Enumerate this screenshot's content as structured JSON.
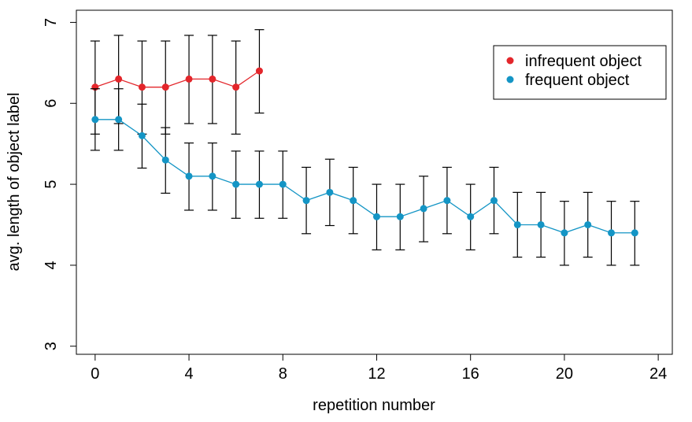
{
  "chart_data": {
    "type": "line",
    "title": "",
    "xlabel": "repetition number",
    "ylabel": "avg. length of object label",
    "xlim": [
      -0.8,
      24.6
    ],
    "ylim": [
      2.9,
      7.15
    ],
    "xticks": [
      0,
      4,
      8,
      12,
      16,
      20,
      24
    ],
    "yticks": [
      3,
      4,
      5,
      6,
      7
    ],
    "grid": false,
    "legend_position": "top-right",
    "series": [
      {
        "name": "infrequent object",
        "color": "#e3262b",
        "x": [
          0,
          1,
          2,
          3,
          4,
          5,
          6,
          7
        ],
        "y": [
          6.2,
          6.3,
          6.2,
          6.2,
          6.3,
          6.3,
          6.2,
          6.4
        ],
        "err_low": [
          5.62,
          5.75,
          5.62,
          5.62,
          5.75,
          5.75,
          5.62,
          5.88
        ],
        "err_high": [
          6.77,
          6.84,
          6.77,
          6.77,
          6.84,
          6.84,
          6.77,
          6.91
        ]
      },
      {
        "name": "frequent object",
        "color": "#1495c5",
        "x": [
          0,
          1,
          2,
          3,
          4,
          5,
          6,
          7,
          8,
          9,
          10,
          11,
          12,
          13,
          14,
          15,
          16,
          17,
          18,
          19,
          20,
          21,
          22,
          23
        ],
        "y": [
          5.8,
          5.8,
          5.6,
          5.3,
          5.1,
          5.1,
          5.0,
          5.0,
          5.0,
          4.8,
          4.9,
          4.8,
          4.6,
          4.6,
          4.7,
          4.8,
          4.6,
          4.8,
          4.5,
          4.5,
          4.4,
          4.5,
          4.4,
          4.4
        ],
        "err_low": [
          5.42,
          5.42,
          5.2,
          4.89,
          4.68,
          4.68,
          4.58,
          4.58,
          4.58,
          4.39,
          4.49,
          4.39,
          4.19,
          4.19,
          4.29,
          4.39,
          4.19,
          4.39,
          4.1,
          4.1,
          4.0,
          4.1,
          4.0,
          4.0
        ],
        "err_high": [
          6.18,
          6.18,
          5.99,
          5.7,
          5.51,
          5.51,
          5.41,
          5.41,
          5.41,
          5.21,
          5.31,
          5.21,
          5.0,
          5.0,
          5.1,
          5.21,
          5.0,
          5.21,
          4.9,
          4.9,
          4.79,
          4.9,
          4.79,
          4.79
        ]
      }
    ]
  }
}
